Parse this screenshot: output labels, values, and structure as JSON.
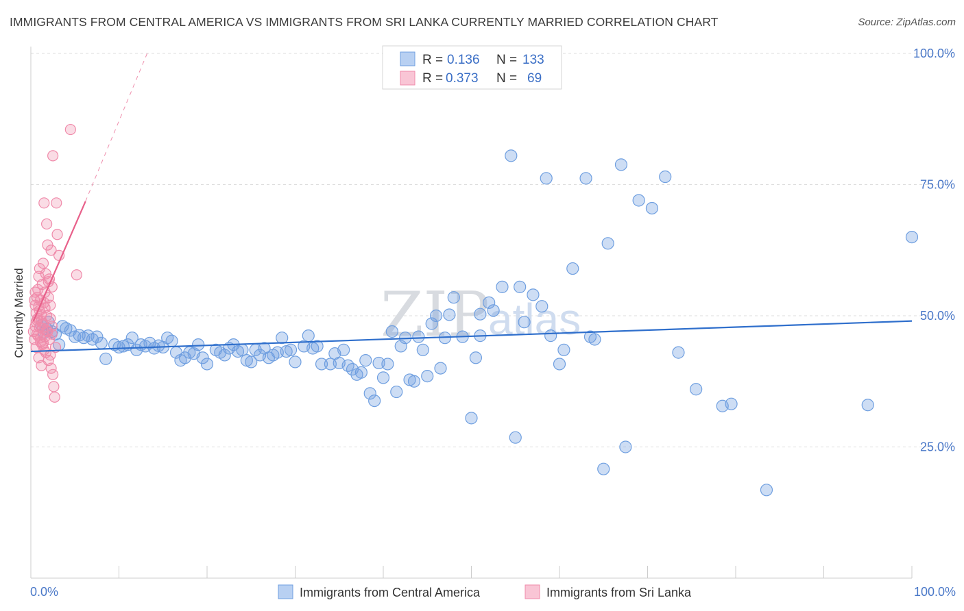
{
  "title": "IMMIGRANTS FROM CENTRAL AMERICA VS IMMIGRANTS FROM SRI LANKA CURRENTLY MARRIED CORRELATION CHART",
  "source": "Source: ZipAtlas.com",
  "watermark": {
    "zip": "ZIP",
    "atlas": "atlas"
  },
  "chart_data": {
    "type": "scatter",
    "ylabel": "Currently Married",
    "xlim": [
      0,
      100
    ],
    "ylim": [
      0,
      100
    ],
    "x_tick_labels": {
      "left": "0.0%",
      "right": "100.0%"
    },
    "y_ticks": [
      {
        "value": 25,
        "label": "25.0%"
      },
      {
        "value": 50,
        "label": "50.0%"
      },
      {
        "value": 75,
        "label": "75.0%"
      },
      {
        "value": 100,
        "label": "100.0%"
      }
    ],
    "grid": true,
    "legend": {
      "placement": "top-center",
      "entries": [
        {
          "r_label": "R =",
          "r_value": "0.136",
          "n_label": "N =",
          "n_value": "133"
        },
        {
          "r_label": "R =",
          "r_value": "0.373",
          "n_label": "N =",
          "n_value": "69"
        }
      ]
    },
    "series": [
      {
        "name": "Immigrants from Central America",
        "color": "#6f9fe0",
        "line_color": "#2f6fcc",
        "trend": {
          "x": [
            0,
            100
          ],
          "y": [
            43.2,
            49.0
          ]
        },
        "points": [
          [
            1.2,
            48.2
          ],
          [
            1.5,
            46.8
          ],
          [
            1.8,
            47.5
          ],
          [
            2.0,
            48.8
          ],
          [
            2.4,
            47.0
          ],
          [
            2.8,
            46.5
          ],
          [
            3.2,
            44.5
          ],
          [
            3.6,
            48.0
          ],
          [
            4.0,
            47.6
          ],
          [
            4.5,
            47.2
          ],
          [
            5.0,
            46.0
          ],
          [
            5.5,
            46.3
          ],
          [
            6.0,
            45.8
          ],
          [
            6.5,
            46.2
          ],
          [
            7.0,
            45.5
          ],
          [
            7.5,
            46.0
          ],
          [
            8.0,
            44.8
          ],
          [
            8.5,
            41.8
          ],
          [
            9.5,
            44.5
          ],
          [
            10.0,
            44.0
          ],
          [
            10.5,
            44.2
          ],
          [
            11.0,
            44.5
          ],
          [
            11.5,
            45.8
          ],
          [
            12.0,
            43.5
          ],
          [
            12.5,
            44.5
          ],
          [
            13.0,
            44.2
          ],
          [
            13.5,
            44.8
          ],
          [
            14.0,
            43.8
          ],
          [
            14.5,
            44.3
          ],
          [
            15.0,
            44.0
          ],
          [
            15.5,
            45.8
          ],
          [
            16.0,
            45.2
          ],
          [
            16.5,
            43.0
          ],
          [
            17.0,
            41.5
          ],
          [
            17.5,
            42.0
          ],
          [
            18.0,
            43.0
          ],
          [
            18.5,
            42.8
          ],
          [
            19.0,
            44.5
          ],
          [
            19.5,
            42.0
          ],
          [
            20.0,
            40.8
          ],
          [
            21.0,
            43.5
          ],
          [
            21.5,
            43.0
          ],
          [
            22.0,
            42.5
          ],
          [
            22.5,
            43.8
          ],
          [
            23.0,
            44.5
          ],
          [
            23.5,
            43.2
          ],
          [
            24.0,
            43.5
          ],
          [
            24.5,
            41.5
          ],
          [
            25.0,
            41.2
          ],
          [
            25.5,
            43.5
          ],
          [
            26.0,
            42.5
          ],
          [
            26.5,
            43.8
          ],
          [
            27.0,
            42.0
          ],
          [
            27.5,
            42.5
          ],
          [
            28.0,
            43.0
          ],
          [
            28.5,
            45.8
          ],
          [
            29.0,
            43.2
          ],
          [
            29.5,
            43.5
          ],
          [
            30.0,
            41.2
          ],
          [
            31.0,
            44.2
          ],
          [
            31.5,
            46.2
          ],
          [
            32.0,
            43.8
          ],
          [
            32.5,
            44.2
          ],
          [
            33.0,
            40.8
          ],
          [
            34.0,
            40.8
          ],
          [
            34.5,
            42.8
          ],
          [
            35.0,
            41.0
          ],
          [
            35.5,
            43.5
          ],
          [
            36.0,
            40.5
          ],
          [
            36.5,
            39.8
          ],
          [
            37.0,
            38.8
          ],
          [
            37.5,
            39.2
          ],
          [
            38.0,
            41.5
          ],
          [
            38.5,
            35.2
          ],
          [
            39.0,
            33.8
          ],
          [
            39.5,
            41.0
          ],
          [
            40.0,
            38.2
          ],
          [
            40.5,
            40.8
          ],
          [
            41.0,
            47.0
          ],
          [
            41.5,
            35.5
          ],
          [
            42.0,
            44.2
          ],
          [
            42.5,
            45.8
          ],
          [
            43.0,
            37.8
          ],
          [
            43.5,
            37.5
          ],
          [
            44.0,
            46.0
          ],
          [
            44.5,
            43.5
          ],
          [
            45.0,
            38.5
          ],
          [
            45.5,
            48.5
          ],
          [
            46.0,
            50.0
          ],
          [
            46.5,
            40.0
          ],
          [
            47.0,
            45.8
          ],
          [
            47.5,
            50.2
          ],
          [
            48.0,
            53.5
          ],
          [
            49.0,
            46.0
          ],
          [
            50.0,
            30.5
          ],
          [
            50.5,
            42.0
          ],
          [
            51.0,
            46.2
          ],
          [
            52.0,
            52.5
          ],
          [
            52.5,
            51.0
          ],
          [
            53.5,
            55.5
          ],
          [
            54.5,
            80.5
          ],
          [
            55.0,
            26.8
          ],
          [
            55.5,
            55.5
          ],
          [
            56.0,
            48.8
          ],
          [
            57.0,
            54.0
          ],
          [
            58.0,
            51.8
          ],
          [
            58.5,
            76.2
          ],
          [
            59.0,
            46.2
          ],
          [
            60.0,
            40.8
          ],
          [
            60.5,
            43.5
          ],
          [
            61.5,
            59.0
          ],
          [
            63.0,
            76.2
          ],
          [
            63.5,
            46.0
          ],
          [
            64.0,
            45.5
          ],
          [
            65.0,
            20.8
          ],
          [
            65.5,
            63.8
          ],
          [
            67.0,
            78.8
          ],
          [
            67.5,
            25.0
          ],
          [
            69.0,
            72.0
          ],
          [
            70.5,
            70.5
          ],
          [
            72.0,
            76.5
          ],
          [
            73.5,
            43.0
          ],
          [
            75.5,
            36.0
          ],
          [
            78.5,
            32.8
          ],
          [
            79.5,
            33.2
          ],
          [
            83.5,
            16.8
          ],
          [
            95.0,
            33.0
          ],
          [
            100.0,
            65.0
          ],
          [
            51.0,
            50.3
          ]
        ]
      },
      {
        "name": "Immigrants from Sri Lanka",
        "color": "#f08aaa",
        "line_color": "#e8608a",
        "trend_solid": {
          "x": [
            0.3,
            6.2
          ],
          "y": [
            49.0,
            71.8
          ]
        },
        "trend_dashed": {
          "x": [
            6.2,
            13.2
          ],
          "y": [
            71.8,
            100.0
          ]
        },
        "points": [
          [
            0.3,
            47.0
          ],
          [
            0.4,
            45.5
          ],
          [
            0.5,
            48.0
          ],
          [
            0.5,
            52.0
          ],
          [
            0.6,
            50.5
          ],
          [
            0.6,
            44.0
          ],
          [
            0.7,
            53.5
          ],
          [
            0.7,
            46.5
          ],
          [
            0.8,
            49.5
          ],
          [
            0.8,
            55.0
          ],
          [
            0.9,
            42.0
          ],
          [
            0.9,
            57.5
          ],
          [
            1.0,
            47.8
          ],
          [
            1.0,
            51.0
          ],
          [
            1.1,
            45.0
          ],
          [
            1.1,
            53.0
          ],
          [
            1.2,
            49.0
          ],
          [
            1.2,
            40.5
          ],
          [
            1.3,
            56.0
          ],
          [
            1.3,
            44.5
          ],
          [
            1.4,
            60.0
          ],
          [
            1.4,
            48.5
          ],
          [
            1.5,
            52.5
          ],
          [
            1.5,
            71.5
          ],
          [
            1.6,
            46.0
          ],
          [
            1.6,
            54.5
          ],
          [
            1.7,
            58.0
          ],
          [
            1.7,
            43.0
          ],
          [
            1.8,
            67.5
          ],
          [
            1.8,
            50.0
          ],
          [
            1.9,
            63.5
          ],
          [
            1.9,
            47.0
          ],
          [
            2.0,
            41.5
          ],
          [
            2.0,
            53.5
          ],
          [
            2.1,
            57.0
          ],
          [
            2.1,
            45.5
          ],
          [
            2.2,
            52.0
          ],
          [
            2.2,
            49.5
          ],
          [
            2.3,
            62.5
          ],
          [
            2.3,
            40.0
          ],
          [
            2.4,
            55.5
          ],
          [
            2.4,
            46.5
          ],
          [
            2.5,
            80.5
          ],
          [
            2.5,
            38.8
          ],
          [
            2.6,
            36.5
          ],
          [
            2.7,
            34.5
          ],
          [
            2.8,
            44.0
          ],
          [
            2.9,
            71.5
          ],
          [
            3.0,
            65.5
          ],
          [
            3.2,
            61.5
          ],
          [
            4.5,
            85.5
          ],
          [
            5.2,
            57.8
          ],
          [
            0.4,
            53.0
          ],
          [
            0.6,
            48.8
          ],
          [
            0.8,
            46.2
          ],
          [
            1.0,
            59.0
          ],
          [
            1.2,
            50.2
          ],
          [
            1.4,
            44.8
          ],
          [
            1.6,
            51.5
          ],
          [
            1.8,
            47.2
          ],
          [
            2.0,
            56.5
          ],
          [
            2.2,
            42.5
          ],
          [
            2.4,
            48.0
          ],
          [
            0.5,
            54.5
          ],
          [
            0.7,
            49.2
          ],
          [
            0.9,
            51.8
          ],
          [
            1.1,
            45.8
          ],
          [
            1.3,
            47.6
          ],
          [
            1.5,
            43.5
          ]
        ]
      }
    ]
  }
}
